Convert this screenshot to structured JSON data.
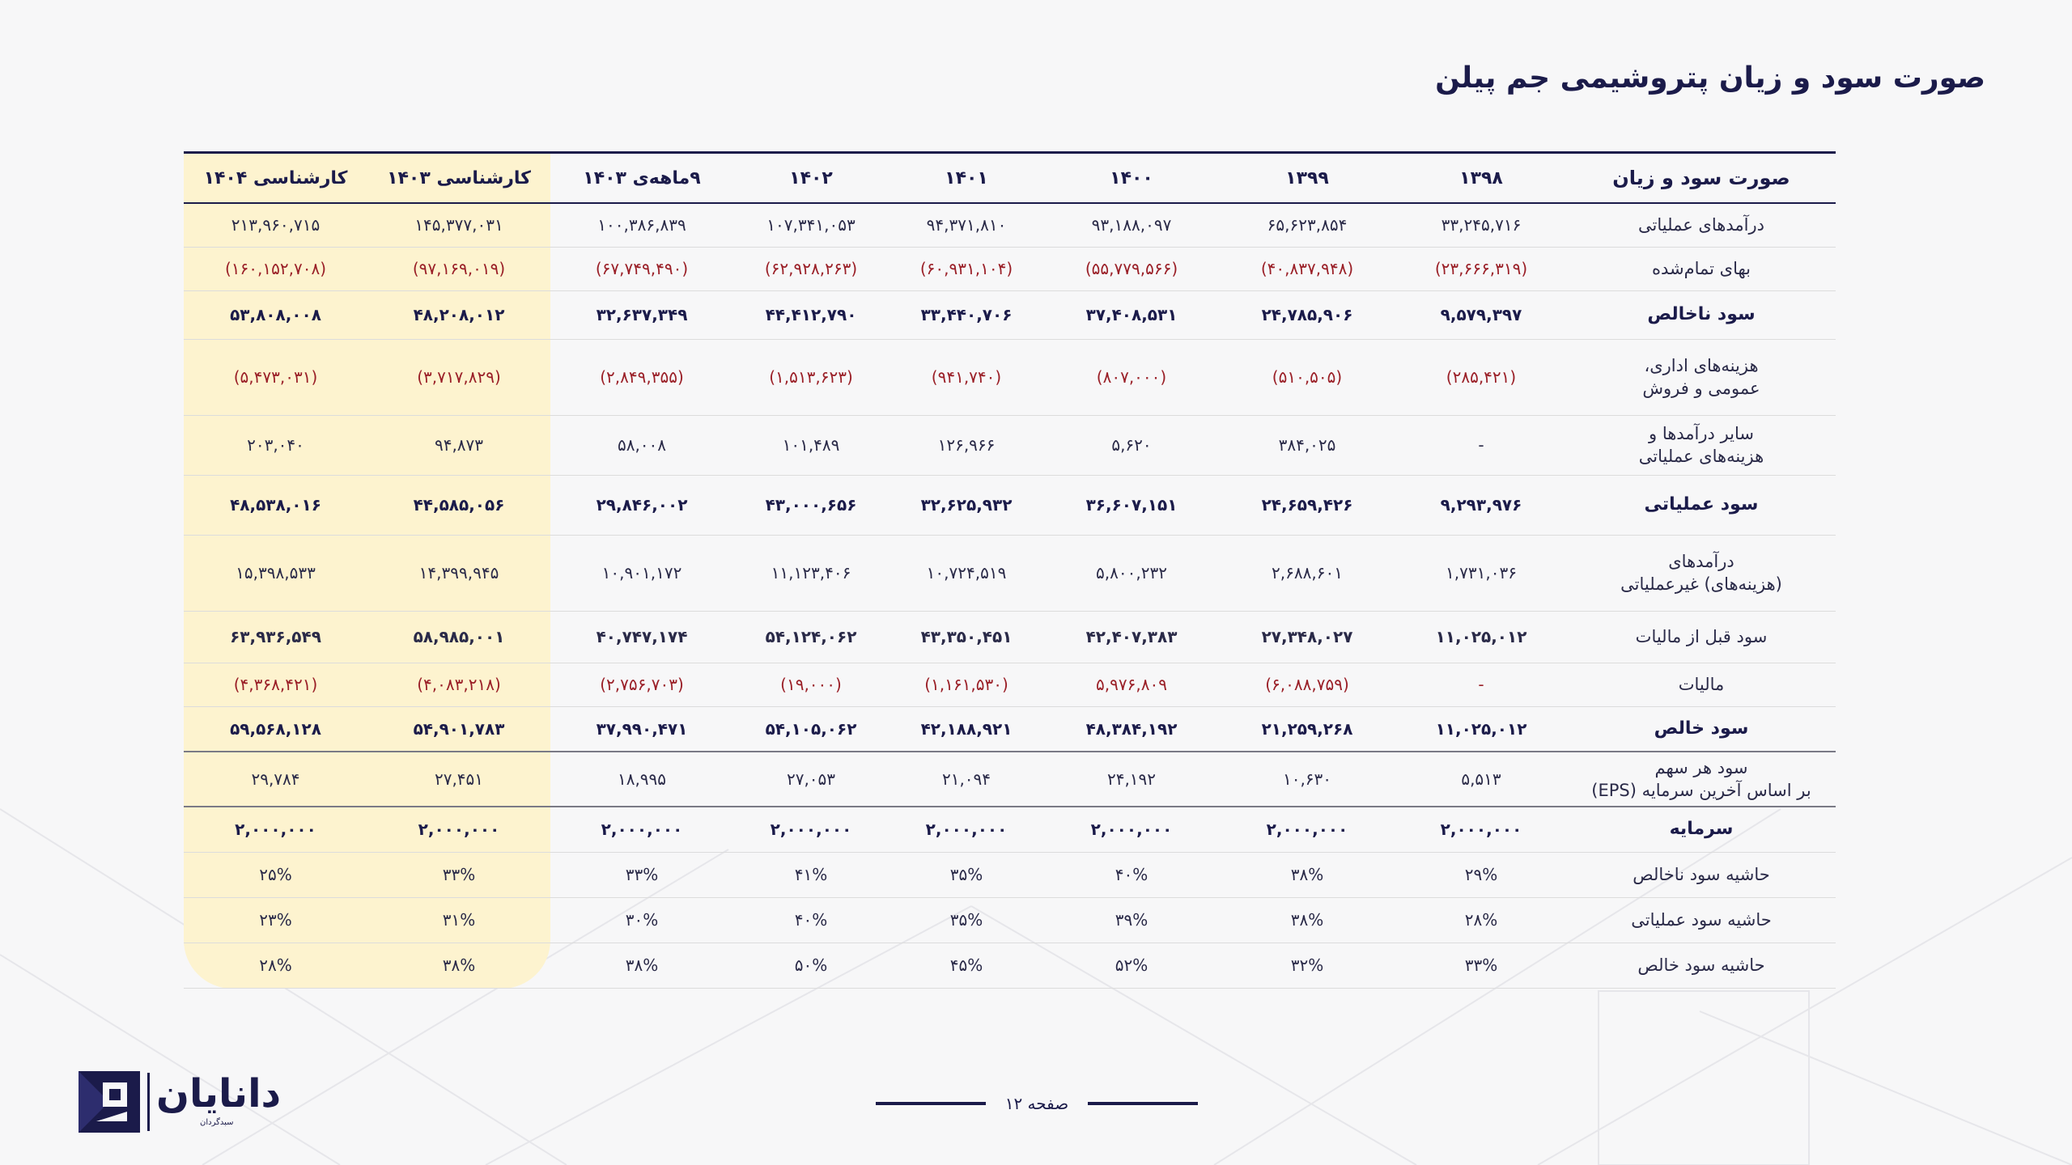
{
  "title": "صورت سود و زیان پتروشیمی جم پیلن",
  "table": {
    "headers": [
      "صورت سود و زیان",
      "۱۳۹۸",
      "۱۳۹۹",
      "۱۴۰۰",
      "۱۴۰۱",
      "۱۴۰۲",
      "۹ماهه‌ی ۱۴۰۳",
      "کارشناسی ۱۴۰۳",
      "کارشناسی ۱۴۰۴"
    ],
    "rows": [
      {
        "label": "درآمدهای عملیاتی",
        "cells": [
          "۳۳,۲۴۵,۷۱۶",
          "۶۵,۶۲۳,۸۵۴",
          "۹۳,۱۸۸,۰۹۷",
          "۹۴,۳۷۱,۸۱۰",
          "۱۰۷,۳۴۱,۰۵۳",
          "۱۰۰,۳۸۶,۸۳۹",
          "۱۴۵,۳۷۷,۰۳۱",
          "۲۱۳,۹۶۰,۷۱۵"
        ]
      },
      {
        "label": "بهای تمام‌شده",
        "cells": [
          "(۲۳,۶۶۶,۳۱۹)",
          "(۴۰,۸۳۷,۹۴۸)",
          "(۵۵,۷۷۹,۵۶۶)",
          "(۶۰,۹۳۱,۱۰۴)",
          "(۶۲,۹۲۸,۲۶۳)",
          "(۶۷,۷۴۹,۴۹۰)",
          "(۹۷,۱۶۹,۰۱۹)",
          "(۱۶۰,۱۵۲,۷۰۸)"
        ]
      },
      {
        "label": "سود ناخالص",
        "cells": [
          "۹,۵۷۹,۳۹۷",
          "۲۴,۷۸۵,۹۰۶",
          "۳۷,۴۰۸,۵۳۱",
          "۳۳,۴۴۰,۷۰۶",
          "۴۴,۴۱۲,۷۹۰",
          "۳۲,۶۳۷,۳۴۹",
          "۴۸,۲۰۸,۰۱۲",
          "۵۳,۸۰۸,۰۰۸"
        ]
      },
      {
        "label": "هزینه‌های اداری، عمومی و فروش",
        "label1": "هزینه‌های اداری،",
        "label2": "عمومی و فروش",
        "cells": [
          "(۲۸۵,۴۲۱)",
          "(۵۱۰,۵۰۵)",
          "(۸۰۷,۰۰۰)",
          "(۹۴۱,۷۴۰)",
          "(۱,۵۱۳,۶۲۳)",
          "(۲,۸۴۹,۳۵۵)",
          "(۳,۷۱۷,۸۲۹)",
          "(۵,۴۷۳,۰۳۱)"
        ]
      },
      {
        "label": "سایر درآمدها و هزینه‌های عملیاتی",
        "label1": "سایر درآمدها و",
        "label2": "هزینه‌های عملیاتی",
        "cells": [
          "-",
          "۳۸۴,۰۲۵",
          "۵,۶۲۰",
          "۱۲۶,۹۶۶",
          "۱۰۱,۴۸۹",
          "۵۸,۰۰۸",
          "۹۴,۸۷۳",
          "۲۰۳,۰۴۰"
        ]
      },
      {
        "label": "سود عملیاتی",
        "cells": [
          "۹,۲۹۳,۹۷۶",
          "۲۴,۶۵۹,۴۲۶",
          "۳۶,۶۰۷,۱۵۱",
          "۳۲,۶۲۵,۹۳۲",
          "۴۳,۰۰۰,۶۵۶",
          "۲۹,۸۴۶,۰۰۲",
          "۴۴,۵۸۵,۰۵۶",
          "۴۸,۵۳۸,۰۱۶"
        ]
      },
      {
        "label": "درآمدهای (هزینه‌های) غیرعملیاتی",
        "label1": "درآمدهای",
        "label2": "(هزینه‌های) غیرعملیاتی",
        "cells": [
          "۱,۷۳۱,۰۳۶",
          "۲,۶۸۸,۶۰۱",
          "۵,۸۰۰,۲۳۲",
          "۱۰,۷۲۴,۵۱۹",
          "۱۱,۱۲۳,۴۰۶",
          "۱۰,۹۰۱,۱۷۲",
          "۱۴,۳۹۹,۹۴۵",
          "۱۵,۳۹۸,۵۳۳"
        ]
      },
      {
        "label": "سود قبل از مالیات",
        "cells": [
          "۱۱,۰۲۵,۰۱۲",
          "۲۷,۳۴۸,۰۲۷",
          "۴۲,۴۰۷,۳۸۳",
          "۴۳,۳۵۰,۴۵۱",
          "۵۴,۱۲۴,۰۶۲",
          "۴۰,۷۴۷,۱۷۴",
          "۵۸,۹۸۵,۰۰۱",
          "۶۳,۹۳۶,۵۴۹"
        ]
      },
      {
        "label": "مالیات",
        "cells": [
          "-",
          "(۶,۰۸۸,۷۵۹)",
          "۵,۹۷۶,۸۰۹",
          "(۱,۱۶۱,۵۳۰)",
          "(۱۹,۰۰۰)",
          "(۲,۷۵۶,۷۰۳)",
          "(۴,۰۸۳,۲۱۸)",
          "(۴,۳۶۸,۴۲۱)"
        ]
      },
      {
        "label": "سود خالص",
        "cells": [
          "۱۱,۰۲۵,۰۱۲",
          "۲۱,۲۵۹,۲۶۸",
          "۴۸,۳۸۴,۱۹۲",
          "۴۲,۱۸۸,۹۲۱",
          "۵۴,۱۰۵,۰۶۲",
          "۳۷,۹۹۰,۴۷۱",
          "۵۴,۹۰۱,۷۸۳",
          "۵۹,۵۶۸,۱۲۸"
        ]
      },
      {
        "label": "سود هر سهم بر اساس آخرین سرمایه (EPS)",
        "label1": "سود هر سهم",
        "label2": "بر اساس آخرین سرمایه (EPS)",
        "cells": [
          "۵,۵۱۳",
          "۱۰,۶۳۰",
          "۲۴,۱۹۲",
          "۲۱,۰۹۴",
          "۲۷,۰۵۳",
          "۱۸,۹۹۵",
          "۲۷,۴۵۱",
          "۲۹,۷۸۴"
        ]
      },
      {
        "label": "سرمایه",
        "cells": [
          "۲,۰۰۰,۰۰۰",
          "۲,۰۰۰,۰۰۰",
          "۲,۰۰۰,۰۰۰",
          "۲,۰۰۰,۰۰۰",
          "۲,۰۰۰,۰۰۰",
          "۲,۰۰۰,۰۰۰",
          "۲,۰۰۰,۰۰۰",
          "۲,۰۰۰,۰۰۰"
        ]
      },
      {
        "label": "حاشیه سود ناخالص",
        "cells": [
          "۲۹%",
          "۳۸%",
          "۴۰%",
          "۳۵%",
          "۴۱%",
          "۳۳%",
          "۳۳%",
          "۲۵%"
        ]
      },
      {
        "label": "حاشیه سود عملیاتی",
        "cells": [
          "۲۸%",
          "۳۸%",
          "۳۹%",
          "۳۵%",
          "۴۰%",
          "۳۰%",
          "۳۱%",
          "۲۳%"
        ]
      },
      {
        "label": "حاشیه سود خالص",
        "cells": [
          "۳۳%",
          "۳۲%",
          "۵۲%",
          "۴۵%",
          "۵۰%",
          "۳۸%",
          "۳۸%",
          "۲۸%"
        ]
      }
    ]
  },
  "footer": {
    "page_label": "صفحه ۱۲"
  },
  "logo": {
    "name": "دانایان",
    "subtitle": "سبدگردان"
  },
  "colors": {
    "navy": "#1b1b4a",
    "negative": "#9a1f27",
    "highlight": "#fdf3cf"
  }
}
